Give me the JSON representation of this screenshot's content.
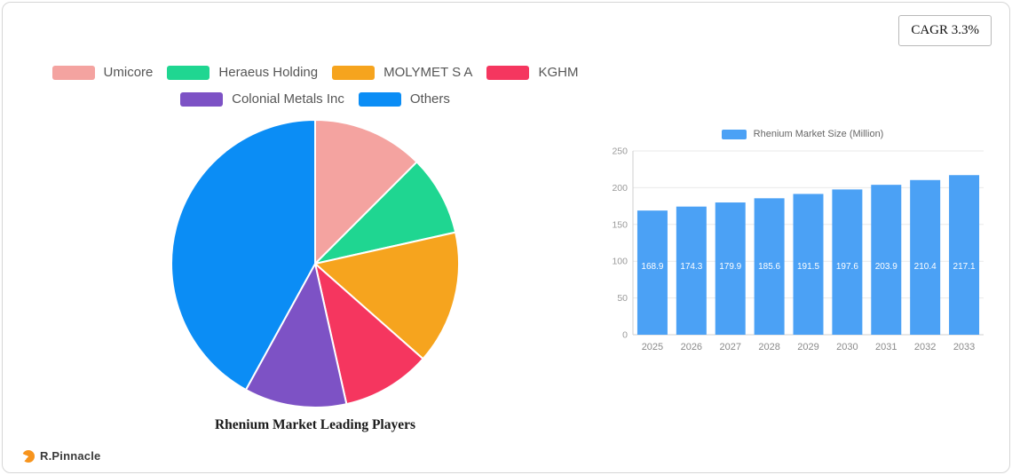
{
  "header": {
    "cagr": "CAGR 3.3%"
  },
  "footer": {
    "brand": "R.Pinnacle",
    "logo_color": "#f7941d"
  },
  "chart_data": [
    {
      "type": "pie",
      "title": "Rhenium Market Leading Players",
      "labels": [
        "Umicore",
        "Heraeus Holding",
        "MOLYMET S A",
        "KGHM",
        "Colonial Metals Inc",
        "Others"
      ],
      "values": [
        12.5,
        9,
        15,
        10,
        11.5,
        42
      ],
      "colors": [
        "#f4a3a0",
        "#1fd691",
        "#f6a41e",
        "#f5365f",
        "#7d52c5",
        "#0b8df5"
      ],
      "legend_position": "top",
      "start_angle_deg": 90,
      "direction": "clockwise"
    },
    {
      "type": "bar",
      "series_name": "Rhenium Market Size (Million)",
      "categories": [
        "2025",
        "2026",
        "2027",
        "2028",
        "2029",
        "2030",
        "2031",
        "2032",
        "2033"
      ],
      "values": [
        168.9,
        174.3,
        179.9,
        185.6,
        191.5,
        197.6,
        203.9,
        210.4,
        217.1
      ],
      "ylim": [
        0,
        250
      ],
      "yticks": [
        0,
        50,
        100,
        150,
        200,
        250
      ],
      "bar_color": "#4ba1f5",
      "grid": true,
      "legend_position": "top",
      "value_labels": "inside-white"
    }
  ]
}
